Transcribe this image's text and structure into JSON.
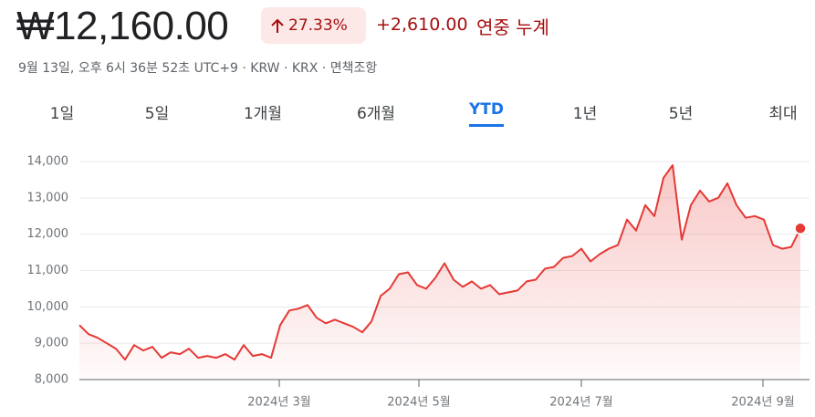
{
  "header": {
    "price": "₩12,160.00",
    "change_percent": "27.33%",
    "change": "+2,610.00",
    "period": "연중 누계",
    "subtitle": "9월 13일, 오후 6시 36분 52초 UTC+9 · KRW · KRX · 면책조항"
  },
  "tabs": [
    "1일",
    "5일",
    "1개월",
    "6개월",
    "YTD",
    "1년",
    "5년",
    "최대"
  ],
  "chart_data": {
    "type": "line",
    "color": "#e53935",
    "values": [
      9500,
      9250,
      9150,
      9000,
      8850,
      8550,
      8950,
      8800,
      8900,
      8600,
      8750,
      8700,
      8850,
      8600,
      8650,
      8600,
      8700,
      8550,
      8950,
      8650,
      8700,
      8600,
      9500,
      9900,
      9950,
      10050,
      9700,
      9550,
      9650,
      9550,
      9450,
      9300,
      9600,
      10300,
      10500,
      10900,
      10950,
      10600,
      10500,
      10800,
      11200,
      10750,
      10550,
      10700,
      10500,
      10600,
      10350,
      10400,
      10450,
      10700,
      10750,
      11050,
      11100,
      11350,
      11400,
      11600,
      11250,
      11450,
      11600,
      11700,
      12400,
      12100,
      12800,
      12500,
      13550,
      13900,
      11850,
      12800,
      13200,
      12900,
      13000,
      13400,
      12800,
      12450,
      12500,
      12400,
      11700,
      11600,
      11650,
      12160
    ],
    "xlim": [
      0,
      79
    ],
    "xticks": [
      {
        "value": 21.9,
        "label": "2024년 3월"
      },
      {
        "value": 37.2,
        "label": "2024년 5월"
      },
      {
        "value": 55,
        "label": "2024년 7월"
      },
      {
        "value": 74.9,
        "label": "2024년 9월"
      }
    ],
    "ylim": [
      8000,
      14000
    ],
    "yticks": [
      {
        "value": 8000,
        "label": "8,000"
      },
      {
        "value": 9000,
        "label": "9,000"
      },
      {
        "value": 10000,
        "label": "10,000"
      },
      {
        "value": 11000,
        "label": "11,000"
      },
      {
        "value": 12000,
        "label": "12,000"
      },
      {
        "value": 13000,
        "label": "13,000"
      },
      {
        "value": 14000,
        "label": "14,000"
      }
    ],
    "grid": true
  }
}
